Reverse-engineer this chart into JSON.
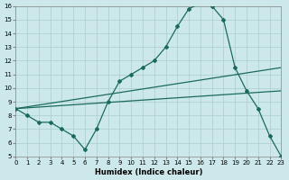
{
  "bg_color": "#cde8ea",
  "line_color": "#1a6b5a",
  "grid_color": "#aacece",
  "xlim": [
    0,
    23
  ],
  "ylim": [
    5,
    16
  ],
  "xticks": [
    0,
    1,
    2,
    3,
    4,
    5,
    6,
    7,
    8,
    9,
    10,
    11,
    12,
    13,
    14,
    15,
    16,
    17,
    18,
    19,
    20,
    21,
    22,
    23
  ],
  "yticks": [
    5,
    6,
    7,
    8,
    9,
    10,
    11,
    12,
    13,
    14,
    15,
    16
  ],
  "xlabel": "Humidex (Indice chaleur)",
  "main_x": [
    0,
    1,
    2,
    3,
    4,
    5,
    6,
    7,
    8,
    9,
    10,
    11,
    12,
    13,
    14,
    15,
    16,
    17,
    18,
    19,
    20,
    21,
    22,
    23
  ],
  "main_y": [
    8.5,
    8.0,
    7.5,
    7.5,
    7.0,
    6.5,
    5.5,
    7.0,
    9.0,
    10.5,
    11.0,
    11.5,
    12.0,
    13.0,
    14.5,
    15.8,
    16.2,
    16.0,
    15.0,
    11.5,
    9.8,
    8.5,
    6.5,
    5.0
  ],
  "line2_x": [
    0,
    23
  ],
  "line2_y": [
    8.5,
    11.5
  ],
  "line3_x": [
    0,
    23
  ],
  "line3_y": [
    8.5,
    9.8
  ]
}
